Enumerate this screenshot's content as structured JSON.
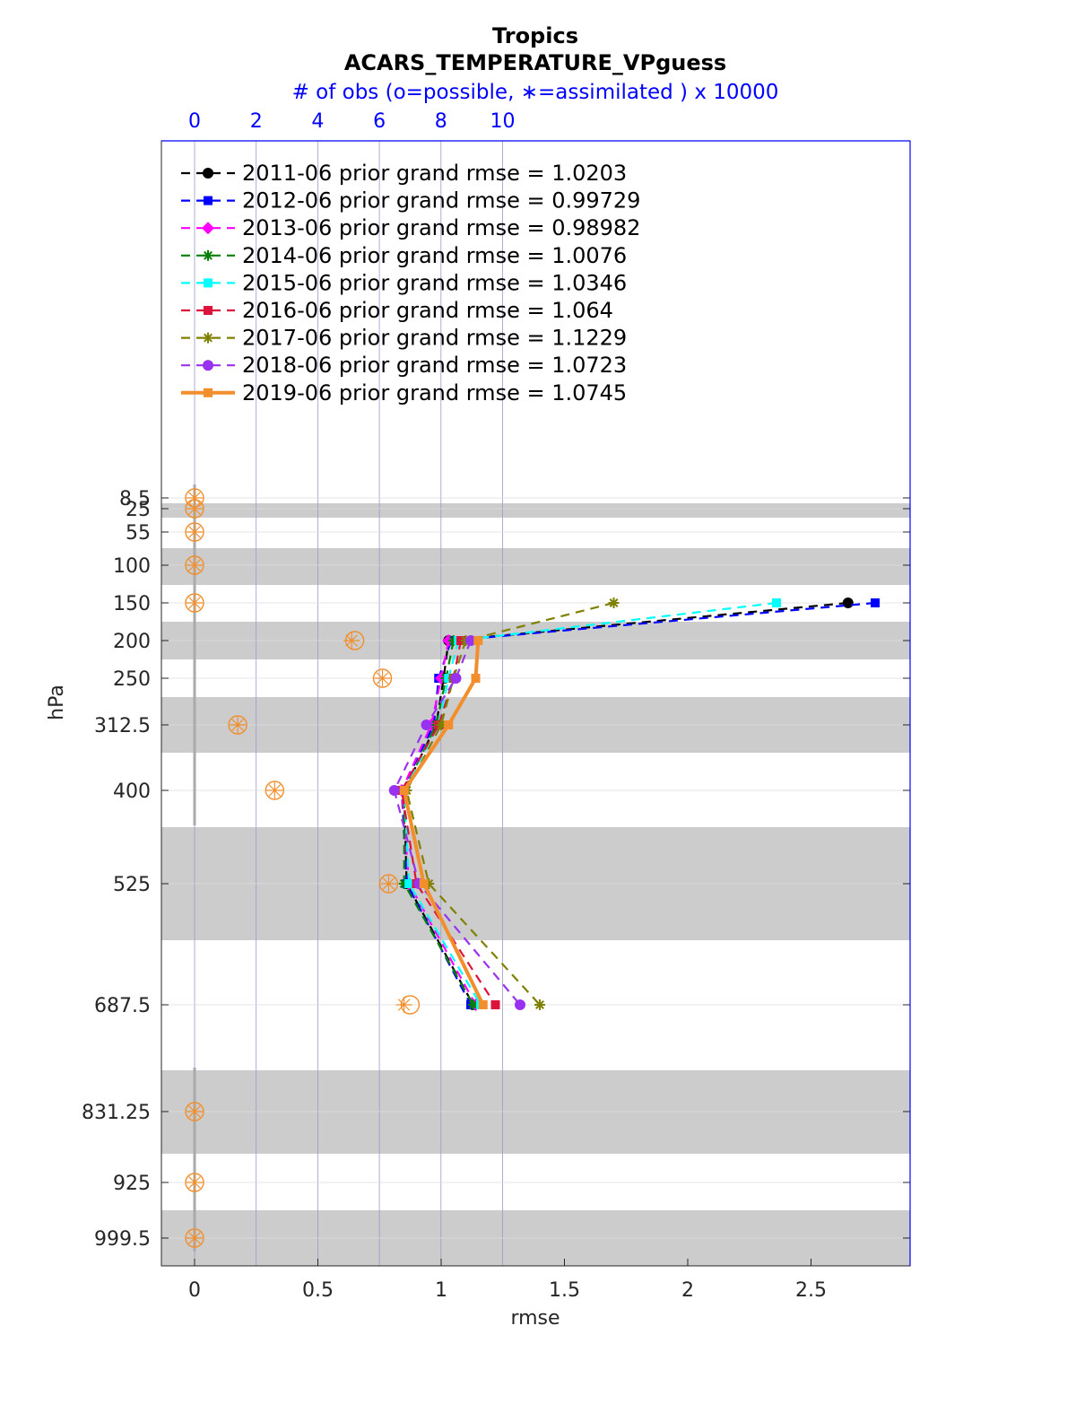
{
  "chart_data": {
    "type": "line",
    "title": "Tropics",
    "subtitle": "ACARS_TEMPERATURE_VPguess",
    "top_axis_label": "# of obs (o=possible, ∗=assimilated ) x 10000",
    "xlabel": "rmse",
    "ylabel": "hPa",
    "xlim": [
      -0.14,
      2.9
    ],
    "x_ticks": [
      "0",
      "0.5",
      "1",
      "1.5",
      "2",
      "2.5"
    ],
    "x_tick_values": [
      0,
      0.5,
      1,
      1.5,
      2,
      2.5
    ],
    "top_ticks": [
      "0",
      "2",
      "4",
      "6",
      "8",
      "10"
    ],
    "top_tick_values": [
      0,
      2,
      4,
      6,
      8,
      10
    ],
    "levels": [
      8.5,
      25,
      55,
      100,
      150,
      200,
      250,
      312.5,
      400,
      525,
      687.5,
      831.25,
      925,
      999.5
    ],
    "level_labels": [
      "8.5",
      "25",
      "55",
      "100",
      "150",
      "200",
      "250",
      "312.5",
      "400",
      "525",
      "687.5",
      "831.25",
      "925",
      "999.5"
    ],
    "grid": true,
    "legend_position": "top-left",
    "series": [
      {
        "name": "2011-06 prior grand rmse = 1.0203",
        "color": "#000000",
        "style": "dashed",
        "marker": "circle",
        "levels": [
          150,
          200,
          250,
          312.5,
          400,
          525,
          687.5
        ],
        "rmse": [
          2.65,
          1.03,
          1.01,
          0.98,
          0.85,
          0.86,
          1.13
        ]
      },
      {
        "name": "2012-06 prior grand rmse = 0.99729",
        "color": "#0000ff",
        "style": "dashed",
        "marker": "square",
        "levels": [
          150,
          200,
          250,
          312.5,
          400,
          525,
          687.5
        ],
        "rmse": [
          2.76,
          1.04,
          0.99,
          0.97,
          0.84,
          0.86,
          1.12
        ]
      },
      {
        "name": "2013-06 prior grand rmse = 0.98982",
        "color": "#ff00ff",
        "style": "dashed",
        "marker": "diamond",
        "levels": [
          150,
          200,
          250,
          312.5,
          400,
          525,
          687.5
        ],
        "rmse": [
          null,
          1.03,
          1.0,
          0.96,
          0.84,
          0.87,
          1.14
        ]
      },
      {
        "name": "2014-06 prior grand rmse = 1.0076",
        "color": "#008000",
        "style": "dashed",
        "marker": "star",
        "levels": [
          150,
          200,
          250,
          312.5,
          400,
          525,
          687.5
        ],
        "rmse": [
          null,
          1.05,
          1.02,
          0.98,
          0.85,
          0.85,
          1.13
        ]
      },
      {
        "name": "2015-06 prior grand rmse = 1.0346",
        "color": "#00ffff",
        "style": "dashed",
        "marker": "square",
        "levels": [
          150,
          200,
          250,
          312.5,
          400,
          525,
          687.5
        ],
        "rmse": [
          2.36,
          1.07,
          1.03,
          0.99,
          0.85,
          0.87,
          1.16
        ]
      },
      {
        "name": "2016-06 prior grand rmse = 1.064",
        "color": "#dc143c",
        "style": "dashed",
        "marker": "square",
        "levels": [
          150,
          200,
          250,
          312.5,
          400,
          525,
          687.5
        ],
        "rmse": [
          null,
          1.08,
          1.05,
          0.99,
          0.84,
          0.9,
          1.22
        ]
      },
      {
        "name": "2017-06 prior grand rmse = 1.1229",
        "color": "#808000",
        "style": "dashed",
        "marker": "star",
        "levels": [
          150,
          200,
          250,
          312.5,
          400,
          525,
          687.5
        ],
        "rmse": [
          1.7,
          1.1,
          1.05,
          1.0,
          0.86,
          0.95,
          1.4
        ]
      },
      {
        "name": "2018-06 prior grand rmse = 1.0723",
        "color": "#9932f0",
        "style": "dashed",
        "marker": "circle",
        "levels": [
          150,
          200,
          250,
          312.5,
          400,
          525,
          687.5
        ],
        "rmse": [
          null,
          1.12,
          1.06,
          0.94,
          0.81,
          0.91,
          1.32
        ]
      },
      {
        "name": "2019-06 prior grand rmse = 1.0745",
        "color": "#f28e2b",
        "style": "solid",
        "marker": "square",
        "levels": [
          150,
          200,
          250,
          312.5,
          400,
          525,
          687.5
        ],
        "rmse": [
          null,
          1.15,
          1.14,
          1.03,
          0.85,
          0.93,
          1.17
        ]
      }
    ],
    "obs_counts_x10000": [
      {
        "level": 8.5,
        "possible": 0,
        "assimilated": 0
      },
      {
        "level": 25,
        "possible": 0,
        "assimilated": 0
      },
      {
        "level": 55,
        "possible": 0,
        "assimilated": 0
      },
      {
        "level": 100,
        "possible": 0,
        "assimilated": 0
      },
      {
        "level": 150,
        "possible": 0,
        "assimilated": 0
      },
      {
        "level": 200,
        "possible": 5.2,
        "assimilated": 5.1
      },
      {
        "level": 250,
        "possible": 6.1,
        "assimilated": 6.1
      },
      {
        "level": 312.5,
        "possible": 1.4,
        "assimilated": 1.4
      },
      {
        "level": 400,
        "possible": 2.6,
        "assimilated": 2.6
      },
      {
        "level": 525,
        "possible": 6.3,
        "assimilated": 6.3
      },
      {
        "level": 687.5,
        "possible": 7.0,
        "assimilated": 6.8
      },
      {
        "level": 831.25,
        "possible": 0,
        "assimilated": 0
      },
      {
        "level": 925,
        "possible": 0,
        "assimilated": 0
      },
      {
        "level": 999.5,
        "possible": 0,
        "assimilated": 0
      }
    ]
  }
}
